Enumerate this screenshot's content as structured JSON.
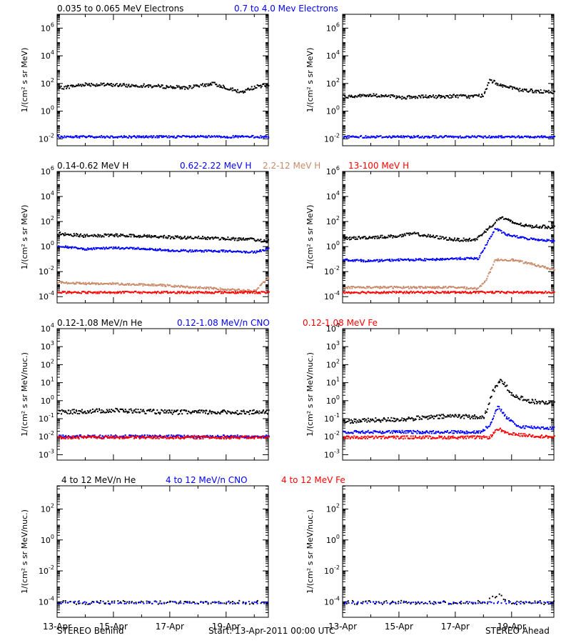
{
  "footer": {
    "left": "STEREO Behind",
    "center": "Start: 13-Apr-2011 00:00 UTC",
    "right": "STEREO Ahead"
  },
  "x_ticks": [
    "13-Apr",
    "15-Apr",
    "17-Apr",
    "19-Apr"
  ],
  "colors": {
    "black": "#000000",
    "blue": "#0000ff",
    "tan": "#c88a6a",
    "red": "#ff0000"
  },
  "rows": [
    {
      "legend": [
        {
          "text": "0.035 to 0.065 MeV Electrons",
          "color": "#000000"
        },
        {
          "text": "0.7 to 4.0 Mev Electrons",
          "color": "#0000ff"
        }
      ],
      "ylabel": "1/(cm² s sr MeV)",
      "yticks": [
        {
          "exp": -2,
          "base": "10",
          "sup": "-2"
        },
        {
          "exp": 0,
          "base": "10",
          "sup": "0"
        },
        {
          "exp": 2,
          "base": "10",
          "sup": "2"
        },
        {
          "exp": 4,
          "base": "10",
          "sup": "4"
        },
        {
          "exp": 6,
          "base": "10",
          "sup": "6"
        }
      ]
    },
    {
      "legend": [
        {
          "text": "0.14-0.62 MeV H",
          "color": "#000000"
        },
        {
          "text": "0.62-2.22 MeV H",
          "color": "#0000ff"
        },
        {
          "text": "2.2-12 MeV H",
          "color": "#c88a6a"
        },
        {
          "text": "13-100 MeV H",
          "color": "#ff0000"
        }
      ],
      "ylabel": "1/(cm² s sr MeV)",
      "yticks": [
        {
          "exp": -4,
          "base": "10",
          "sup": "-4"
        },
        {
          "exp": -2,
          "base": "10",
          "sup": "-2"
        },
        {
          "exp": 0,
          "base": "10",
          "sup": "0"
        },
        {
          "exp": 2,
          "base": "10",
          "sup": "2"
        },
        {
          "exp": 4,
          "base": "10",
          "sup": "4"
        },
        {
          "exp": 6,
          "base": "10",
          "sup": "6"
        }
      ]
    },
    {
      "legend": [
        {
          "text": "0.12-1.08 MeV/n He",
          "color": "#000000"
        },
        {
          "text": "0.12-1.08 MeV/n CNO",
          "color": "#0000ff"
        },
        {
          "text": "0.12-1.08 MeV Fe",
          "color": "#ff0000"
        }
      ],
      "ylabel": "1/(cm² s sr MeV/nuc.)",
      "yticks": [
        {
          "exp": -3,
          "base": "10",
          "sup": "-3"
        },
        {
          "exp": -2,
          "base": "10",
          "sup": "-2"
        },
        {
          "exp": -1,
          "base": "10",
          "sup": "-1"
        },
        {
          "exp": 0,
          "base": "10",
          "sup": "0"
        },
        {
          "exp": 1,
          "base": "10",
          "sup": "1"
        },
        {
          "exp": 2,
          "base": "10",
          "sup": "2"
        },
        {
          "exp": 3,
          "base": "10",
          "sup": "3"
        },
        {
          "exp": 4,
          "base": "10",
          "sup": "4"
        }
      ]
    },
    {
      "legend": [
        {
          "text": "4 to 12 MeV/n He",
          "color": "#000000"
        },
        {
          "text": "4 to 12 MeV/n CNO",
          "color": "#0000ff"
        },
        {
          "text": "4 to 12 MeV Fe",
          "color": "#ff0000"
        }
      ],
      "ylabel": "1/(cm² s sr MeV/nuc.)",
      "yticks": [
        {
          "exp": -4,
          "base": "10",
          "sup": "-4"
        },
        {
          "exp": -2,
          "base": "10",
          "sup": "-2"
        },
        {
          "exp": 0,
          "base": "10",
          "sup": "0"
        },
        {
          "exp": 2,
          "base": "10",
          "sup": "2"
        }
      ]
    }
  ],
  "chart_data": [
    {
      "type": "scatter",
      "name": "behind-electrons",
      "x_unit": "days",
      "xlim": [
        0,
        7.5
      ],
      "ylim_log10": [
        -2.5,
        7
      ],
      "series": [
        {
          "name": "0.035 to 0.065 MeV Electrons",
          "color": "#000000",
          "x": [
            0,
            0.5,
            1,
            1.5,
            2,
            2.5,
            3,
            3.5,
            4,
            4.5,
            5,
            5.5,
            6,
            6.5,
            7,
            7.5
          ],
          "y_log10": [
            1.7,
            1.85,
            2.0,
            1.95,
            1.95,
            1.9,
            1.9,
            1.85,
            1.8,
            1.75,
            1.85,
            2.05,
            1.75,
            1.4,
            1.8,
            1.95
          ]
        },
        {
          "name": "0.7 to 4.0 Mev Electrons",
          "color": "#0000ff",
          "x": [
            0,
            7.5
          ],
          "y_log10": [
            -1.8,
            -1.8
          ]
        }
      ]
    },
    {
      "type": "scatter",
      "name": "ahead-electrons",
      "x_unit": "days",
      "xlim": [
        0,
        7.5
      ],
      "ylim_log10": [
        -2.5,
        7
      ],
      "series": [
        {
          "name": "0.035 to 0.065 MeV Electrons",
          "color": "#000000",
          "x": [
            0,
            0.5,
            1,
            1.5,
            2,
            2.5,
            3,
            3.5,
            4,
            4.5,
            5,
            5.2,
            5.4,
            5.8,
            6.2,
            6.8,
            7.5
          ],
          "y_log10": [
            1.1,
            1.15,
            1.2,
            1.15,
            1.05,
            1.05,
            1.1,
            1.1,
            1.15,
            1.1,
            1.2,
            2.3,
            2.1,
            1.8,
            1.6,
            1.5,
            1.4
          ]
        },
        {
          "name": "0.7 to 4.0 Mev Electrons",
          "color": "#0000ff",
          "x": [
            0,
            7.5
          ],
          "y_log10": [
            -1.8,
            -1.8
          ]
        }
      ]
    },
    {
      "type": "scatter",
      "name": "behind-protons",
      "x_unit": "days",
      "xlim": [
        0,
        7.5
      ],
      "ylim_log10": [
        -4.5,
        6
      ],
      "series": [
        {
          "name": "0.14-0.62 MeV H",
          "color": "#000000",
          "x": [
            0,
            1,
            2,
            3,
            4,
            5,
            6,
            7,
            7.5
          ],
          "y_log10": [
            1.1,
            0.9,
            0.95,
            0.9,
            0.8,
            0.75,
            0.7,
            0.6,
            0.5
          ]
        },
        {
          "name": "0.62-2.22 MeV H",
          "color": "#0000ff",
          "x": [
            0,
            1,
            2,
            3,
            4,
            5,
            6,
            7,
            7.5
          ],
          "y_log10": [
            0.1,
            -0.15,
            -0.05,
            -0.1,
            -0.25,
            -0.3,
            -0.3,
            -0.4,
            -0.1
          ]
        },
        {
          "name": "2.2-12 MeV H",
          "color": "#c88a6a",
          "x": [
            0,
            1,
            2,
            3,
            3.5,
            7.0,
            7.5
          ],
          "y_log10": [
            -2.8,
            -2.9,
            -2.9,
            -3.0,
            -3.0,
            -3.5,
            -2.4
          ]
        },
        {
          "name": "13-100 MeV H",
          "color": "#ff0000",
          "x": [
            0,
            7.5
          ],
          "y_log10": [
            -3.6,
            -3.6
          ]
        }
      ]
    },
    {
      "type": "scatter",
      "name": "ahead-protons",
      "x_unit": "days",
      "xlim": [
        0,
        7.5
      ],
      "ylim_log10": [
        -4.5,
        6
      ],
      "series": [
        {
          "name": "0.14-0.62 MeV H",
          "color": "#000000",
          "x": [
            0,
            1,
            2,
            2.5,
            3,
            4,
            4.7,
            5.2,
            5.6,
            6.0,
            6.5,
            7.5
          ],
          "y_log10": [
            0.7,
            0.8,
            0.9,
            1.1,
            0.9,
            0.6,
            0.6,
            1.6,
            2.4,
            2.0,
            1.7,
            1.6
          ]
        },
        {
          "name": "0.62-2.22 MeV H",
          "color": "#0000ff",
          "x": [
            0,
            1,
            2,
            3,
            4,
            4.8,
            5.1,
            5.4,
            5.8,
            6.5,
            7.5
          ],
          "y_log10": [
            -1.0,
            -1.1,
            -1.0,
            -1.0,
            -0.9,
            -0.9,
            0.3,
            1.5,
            1.0,
            0.7,
            0.5
          ]
        },
        {
          "name": "2.2-12 MeV H",
          "color": "#c88a6a",
          "x": [
            4.0,
            4.8,
            5.1,
            5.4,
            6.0,
            6.8,
            7.5
          ],
          "y_log10": [
            -3.2,
            -3.3,
            -2.5,
            -1.0,
            -1.0,
            -1.4,
            -1.8
          ]
        },
        {
          "name": "13-100 MeV H",
          "color": "#ff0000",
          "x": [
            0,
            7.5
          ],
          "y_log10": [
            -3.6,
            -3.6
          ]
        }
      ]
    },
    {
      "type": "scatter",
      "name": "behind-heavy-ions-low",
      "x_unit": "days",
      "xlim": [
        0,
        7.5
      ],
      "ylim_log10": [
        -3.3,
        4
      ],
      "series": [
        {
          "name": "0.12-1.08 MeV/n He",
          "color": "#000000",
          "x": [
            0,
            2,
            4,
            6,
            7.5
          ],
          "y_log10": [
            -0.6,
            -0.5,
            -0.6,
            -0.6,
            -0.6
          ]
        },
        {
          "name": "0.12-1.08 MeV/n CNO",
          "color": "#0000ff",
          "x": [
            0,
            7.5
          ],
          "y_log10": [
            -1.95,
            -1.95
          ]
        },
        {
          "name": "0.12-1.08 MeV Fe",
          "color": "#ff0000",
          "x": [
            0,
            7.5
          ],
          "y_log10": [
            -2.0,
            -2.0
          ]
        }
      ]
    },
    {
      "type": "scatter",
      "name": "ahead-heavy-ions-low",
      "x_unit": "days",
      "xlim": [
        0,
        7.5
      ],
      "ylim_log10": [
        -3.3,
        4
      ],
      "series": [
        {
          "name": "0.12-1.08 MeV/n He",
          "color": "#000000",
          "x": [
            0,
            2,
            4,
            5.0,
            5.3,
            5.6,
            6.0,
            6.6,
            7.5
          ],
          "y_log10": [
            -1.1,
            -1.0,
            -0.8,
            -0.9,
            0.5,
            1.2,
            0.4,
            0.0,
            -0.1
          ]
        },
        {
          "name": "0.12-1.08 MeV/n CNO",
          "color": "#0000ff",
          "x": [
            0,
            4.9,
            5.2,
            5.5,
            5.8,
            6.2,
            7.5
          ],
          "y_log10": [
            -1.7,
            -1.7,
            -1.3,
            -0.3,
            -0.9,
            -1.4,
            -1.5
          ]
        },
        {
          "name": "0.12-1.08 MeV Fe",
          "color": "#ff0000",
          "x": [
            0,
            5.2,
            5.5,
            5.8,
            7.5
          ],
          "y_log10": [
            -2.0,
            -2.0,
            -1.5,
            -1.8,
            -2.0
          ]
        }
      ]
    },
    {
      "type": "scatter",
      "name": "behind-heavy-ions-high",
      "x_unit": "days",
      "xlim": [
        0,
        7.5
      ],
      "ylim_log10": [
        -5,
        3.5
      ],
      "series": [
        {
          "name": "4 to 12 MeV/n He",
          "color": "#000000",
          "x": [
            0,
            7.5
          ],
          "y_log10": [
            -4.0,
            -4.0
          ]
        },
        {
          "name": "4 to 12 MeV/n CNO",
          "color": "#0000ff",
          "x": [
            0,
            7.5
          ],
          "y_log10": [
            -4.0,
            -4.0
          ]
        }
      ]
    },
    {
      "type": "scatter",
      "name": "ahead-heavy-ions-high",
      "x_unit": "days",
      "xlim": [
        0,
        7.5
      ],
      "ylim_log10": [
        -5,
        3.5
      ],
      "series": [
        {
          "name": "4 to 12 MeV/n He",
          "color": "#000000",
          "x": [
            0,
            5.0,
            5.5,
            6.0,
            7.5
          ],
          "y_log10": [
            -4.0,
            -4.0,
            -3.5,
            -4.0,
            -4.0
          ]
        },
        {
          "name": "4 to 12 MeV/n CNO",
          "color": "#0000ff",
          "x": [
            0,
            7.5
          ],
          "y_log10": [
            -4.0,
            -4.0
          ]
        }
      ]
    }
  ]
}
